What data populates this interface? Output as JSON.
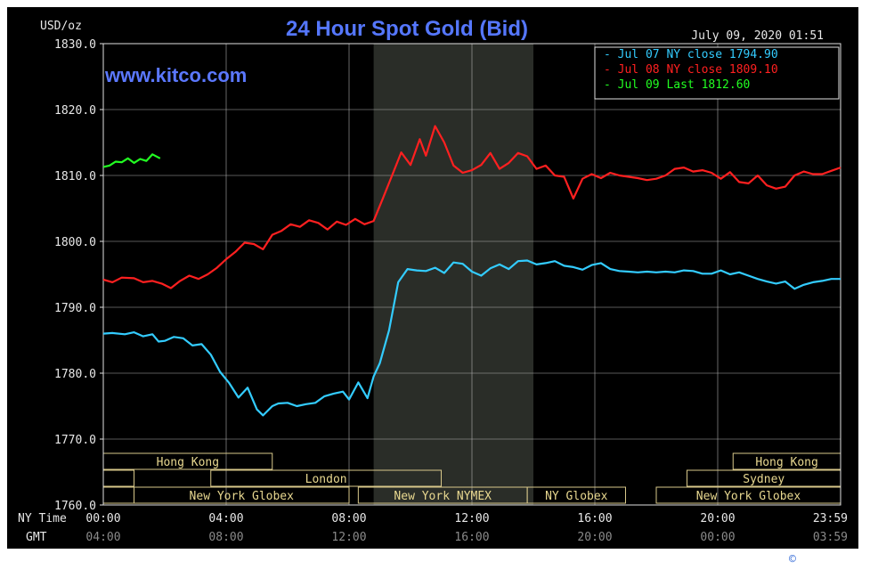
{
  "chart_data": {
    "type": "line",
    "title": "24 Hour Spot Gold (Bid)",
    "unit_label": "USD/oz",
    "date_label": "July 09, 2020 01:51",
    "website": "www.kitco.com",
    "ylim": [
      1760,
      1830
    ],
    "y_ticks": [
      "1830.0",
      "1820.0",
      "1810.0",
      "1800.0",
      "1790.0",
      "1780.0",
      "1770.0",
      "1760.0"
    ],
    "x_row_labels": {
      "ny": "NY Time",
      "gmt": "GMT"
    },
    "x_ticks_ny": [
      "00:00",
      "04:00",
      "08:00",
      "12:00",
      "16:00",
      "20:00",
      "23:59"
    ],
    "x_ticks_gmt": [
      "04:00",
      "08:00",
      "12:00",
      "16:00",
      "20:00",
      "00:00",
      "03:59"
    ],
    "shaded_region_hours": [
      8.8,
      14.0
    ],
    "markets": [
      {
        "label": "Hong Kong",
        "start": 0.0,
        "end": 5.5,
        "row": 0
      },
      {
        "label": "Hong Kong",
        "start": 20.5,
        "end": 24.0,
        "row": 0
      },
      {
        "label": "London",
        "start": 3.5,
        "end": 11.0,
        "row": 1
      },
      {
        "label": "Sydney",
        "start": 19.0,
        "end": 24.0,
        "row": 1
      },
      {
        "label": "New York Globex",
        "start": 1.0,
        "end": 8.0,
        "row": 2
      },
      {
        "label": "New York NYMEX",
        "start": 8.3,
        "end": 13.8,
        "row": 2
      },
      {
        "label": "NY Globex",
        "start": 13.8,
        "end": 17.0,
        "row": 2
      },
      {
        "label": "New York Globex",
        "start": 18.0,
        "end": 24.0,
        "row": 2
      }
    ],
    "market_gaps": [
      {
        "start": 0.0,
        "end": 1.0,
        "row": 1
      },
      {
        "start": 0.0,
        "end": 1.0,
        "row": 2
      }
    ],
    "series": [
      {
        "name": "Jul 07 NY close 1794.90",
        "color": "#33ccff",
        "x": [
          0,
          0.3,
          0.7,
          1.0,
          1.3,
          1.6,
          1.8,
          2.0,
          2.3,
          2.6,
          2.9,
          3.2,
          3.5,
          3.8,
          4.1,
          4.4,
          4.7,
          5.0,
          5.2,
          5.5,
          5.7,
          6.0,
          6.3,
          6.6,
          6.9,
          7.2,
          7.5,
          7.8,
          8.0,
          8.3,
          8.6,
          8.8,
          9.0,
          9.3,
          9.6,
          9.9,
          10.2,
          10.5,
          10.8,
          11.1,
          11.4,
          11.7,
          12.0,
          12.3,
          12.6,
          12.9,
          13.2,
          13.5,
          13.8,
          14.1,
          14.4,
          14.7,
          15.0,
          15.3,
          15.6,
          15.9,
          16.2,
          16.5,
          16.8,
          17.1,
          17.4,
          17.7,
          18.0,
          18.3,
          18.6,
          18.9,
          19.2,
          19.5,
          19.8,
          20.1,
          20.4,
          20.7,
          21.0,
          21.3,
          21.6,
          21.9,
          22.2,
          22.5,
          22.8,
          23.1,
          23.4,
          23.7,
          24.0
        ],
        "y": [
          1786.0,
          1786.1,
          1785.9,
          1786.2,
          1785.6,
          1785.9,
          1784.8,
          1784.9,
          1785.5,
          1785.3,
          1784.2,
          1784.4,
          1782.8,
          1780.2,
          1778.5,
          1776.3,
          1777.8,
          1774.5,
          1773.6,
          1775.0,
          1775.4,
          1775.5,
          1775.0,
          1775.3,
          1775.5,
          1776.5,
          1776.9,
          1777.2,
          1776.0,
          1778.6,
          1776.2,
          1779.5,
          1781.5,
          1786.5,
          1793.8,
          1795.8,
          1795.6,
          1795.5,
          1796.0,
          1795.2,
          1796.8,
          1796.6,
          1795.4,
          1794.8,
          1795.9,
          1796.5,
          1795.8,
          1797.0,
          1797.1,
          1796.5,
          1796.7,
          1797.0,
          1796.3,
          1796.1,
          1795.7,
          1796.4,
          1796.7,
          1795.8,
          1795.5,
          1795.4,
          1795.3,
          1795.4,
          1795.3,
          1795.4,
          1795.3,
          1795.6,
          1795.5,
          1795.1,
          1795.1,
          1795.6,
          1795.0,
          1795.3,
          1794.8,
          1794.3,
          1793.9,
          1793.6,
          1793.9,
          1792.8,
          1793.4,
          1793.8,
          1794.0,
          1794.3,
          1794.3
        ]
      },
      {
        "name": "Jul 08 NY close 1809.10",
        "color": "#ff2020",
        "x": [
          0,
          0.3,
          0.6,
          1.0,
          1.3,
          1.6,
          1.9,
          2.2,
          2.5,
          2.8,
          3.1,
          3.4,
          3.7,
          4.0,
          4.3,
          4.6,
          4.9,
          5.2,
          5.5,
          5.8,
          6.1,
          6.4,
          6.7,
          7.0,
          7.3,
          7.6,
          7.9,
          8.2,
          8.5,
          8.8,
          9.1,
          9.4,
          9.7,
          10.0,
          10.3,
          10.5,
          10.8,
          11.1,
          11.4,
          11.7,
          12.0,
          12.3,
          12.6,
          12.9,
          13.2,
          13.5,
          13.8,
          14.1,
          14.4,
          14.7,
          15.0,
          15.3,
          15.6,
          15.9,
          16.2,
          16.5,
          16.8,
          17.1,
          17.4,
          17.7,
          18.0,
          18.3,
          18.6,
          18.9,
          19.2,
          19.5,
          19.8,
          20.1,
          20.4,
          20.7,
          21.0,
          21.3,
          21.6,
          21.9,
          22.2,
          22.5,
          22.8,
          23.1,
          23.4,
          23.7,
          24.0
        ],
        "y": [
          1794.2,
          1793.8,
          1794.5,
          1794.4,
          1793.8,
          1794.0,
          1793.6,
          1792.9,
          1794.0,
          1794.8,
          1794.3,
          1795.0,
          1796.0,
          1797.3,
          1798.4,
          1799.8,
          1799.6,
          1798.8,
          1801.0,
          1801.6,
          1802.6,
          1802.2,
          1803.2,
          1802.8,
          1801.8,
          1803.0,
          1802.5,
          1803.4,
          1802.6,
          1803.1,
          1806.5,
          1810.0,
          1813.5,
          1811.6,
          1815.5,
          1813.0,
          1817.5,
          1815.0,
          1811.5,
          1810.4,
          1810.8,
          1811.6,
          1813.4,
          1811.0,
          1811.9,
          1813.4,
          1812.9,
          1811.0,
          1811.5,
          1810.0,
          1809.8,
          1806.5,
          1809.5,
          1810.2,
          1809.6,
          1810.4,
          1810.0,
          1809.8,
          1809.6,
          1809.3,
          1809.5,
          1810.0,
          1811.0,
          1811.2,
          1810.6,
          1810.8,
          1810.4,
          1809.5,
          1810.5,
          1809.0,
          1808.8,
          1810.0,
          1808.5,
          1808.0,
          1808.3,
          1810.0,
          1810.6,
          1810.2,
          1810.2,
          1810.7,
          1811.2
        ]
      },
      {
        "name": "Jul 09 Last 1812.60",
        "color": "#22ff22",
        "x": [
          0,
          0.2,
          0.4,
          0.6,
          0.8,
          1.0,
          1.2,
          1.4,
          1.6,
          1.85
        ],
        "y": [
          1811.3,
          1811.5,
          1812.1,
          1812.0,
          1812.6,
          1811.9,
          1812.5,
          1812.2,
          1813.2,
          1812.6
        ]
      }
    ]
  },
  "corner_mark": "©"
}
